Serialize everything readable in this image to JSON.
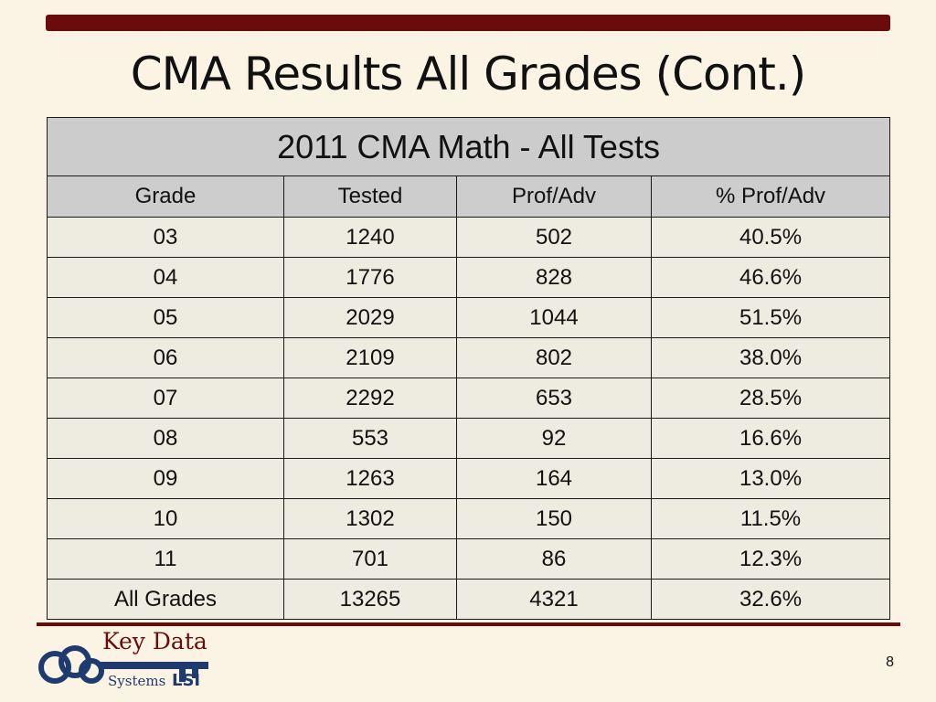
{
  "slide": {
    "title": "CMA Results All Grades (Cont.)",
    "page_number": "8"
  },
  "table": {
    "caption": "2011 CMA Math - All Tests",
    "headers": [
      "Grade",
      "Tested",
      "Prof/Adv",
      "% Prof/Adv"
    ],
    "rows": [
      [
        "03",
        "1240",
        "502",
        "40.5%"
      ],
      [
        "04",
        "1776",
        "828",
        "46.6%"
      ],
      [
        "05",
        "2029",
        "1044",
        "51.5%"
      ],
      [
        "06",
        "2109",
        "802",
        "38.0%"
      ],
      [
        "07",
        "2292",
        "653",
        "28.5%"
      ],
      [
        "08",
        "553",
        "92",
        "16.6%"
      ],
      [
        "09",
        "1263",
        "164",
        "13.0%"
      ],
      [
        "10",
        "1302",
        "150",
        "11.5%"
      ],
      [
        "11",
        "701",
        "86",
        "12.3%"
      ],
      [
        "All Grades",
        "13265",
        "4321",
        "32.6%"
      ]
    ]
  },
  "logo": {
    "line1": "Key Data",
    "line2": "Systems",
    "icon": "key-logo-icon"
  },
  "colors": {
    "accent": "#6b0c0c",
    "logo_navy": "#1f3a6e",
    "background": "#fbf4e4",
    "header_fill": "#cccccc",
    "cell_fill": "#eeebe1"
  }
}
